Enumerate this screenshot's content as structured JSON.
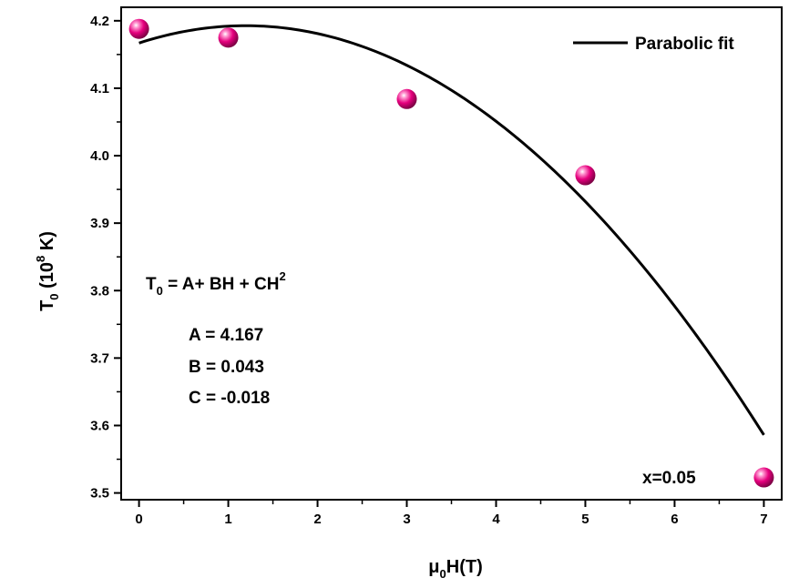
{
  "chart_data": {
    "type": "scatter",
    "xlabel": {
      "main": "μ",
      "sub": "0",
      "rest": "H(T)"
    },
    "ylabel": {
      "main": "T",
      "sub": "0",
      "mid": " (10",
      "sup": "8",
      "rest": " K)"
    },
    "xlim": [
      -0.2,
      7.2
    ],
    "ylim": [
      3.49,
      4.22
    ],
    "xticks": [
      0,
      1,
      2,
      3,
      4,
      5,
      6,
      7
    ],
    "xtick_labels": [
      "0",
      "1",
      "2",
      "3",
      "4",
      "5",
      "6",
      "7"
    ],
    "yticks": [
      3.5,
      3.6,
      3.7,
      3.8,
      3.9,
      4.0,
      4.1,
      4.2
    ],
    "ytick_labels": [
      "3.5",
      "3.6",
      "3.7",
      "3.8",
      "3.9",
      "4.0",
      "4.1",
      "4.2"
    ],
    "points": {
      "x": [
        0,
        1,
        3,
        5,
        7
      ],
      "y": [
        4.188,
        4.175,
        4.084,
        3.971,
        3.523
      ],
      "color": "#e6007e"
    },
    "fit": {
      "legend_label": "Parabolic fit",
      "A": 4.167,
      "B": 0.043,
      "C": -0.018,
      "x_range": [
        0,
        7
      ],
      "color": "#000000"
    },
    "equation": {
      "t": "T",
      "t_sub": "0",
      "body": " = A+ BH + CH",
      "sup": "2"
    },
    "params": [
      "A = 4.167",
      "B = 0.043",
      "C = -0.018"
    ],
    "sample_label": "x=0.05",
    "grid": false,
    "legend_position": "top-right"
  }
}
